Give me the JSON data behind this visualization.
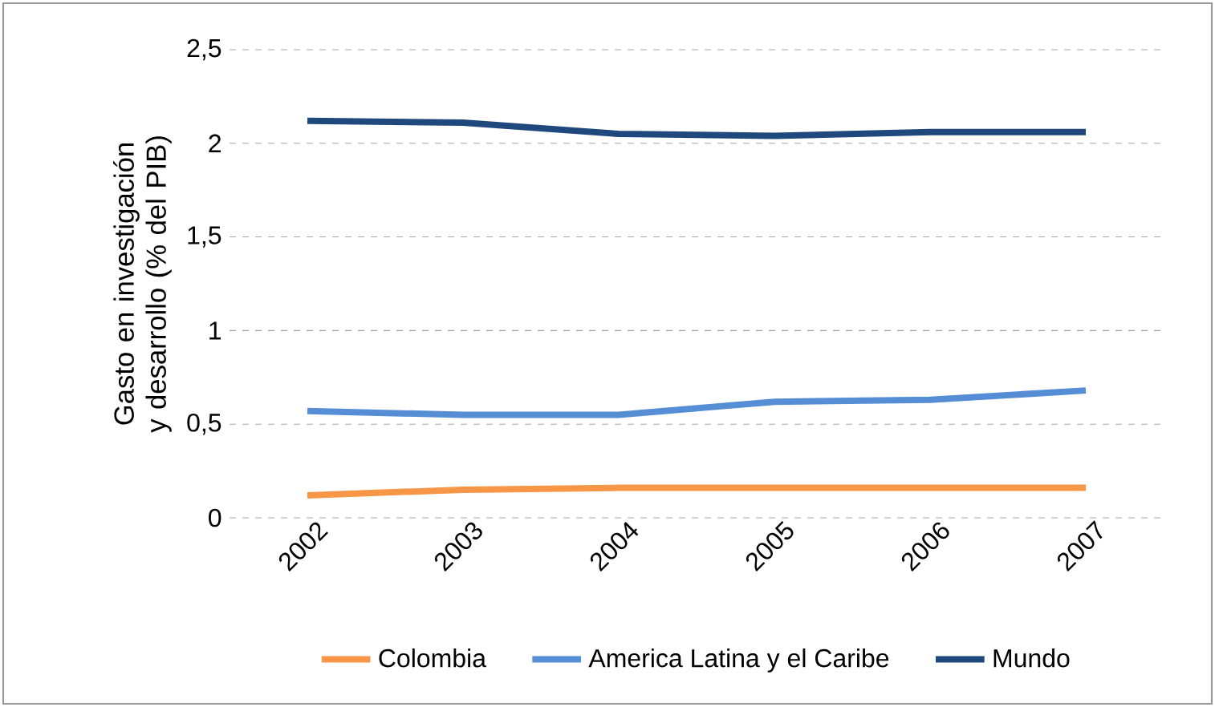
{
  "chart_data": {
    "type": "line",
    "ylabel": "Gasto en investigación y desarrollo (% del PIB)",
    "categories": [
      "2002",
      "2003",
      "2004",
      "2005",
      "2006",
      "2007"
    ],
    "series": [
      {
        "name": "Colombia",
        "color": "#f79646",
        "values": [
          0.12,
          0.15,
          0.16,
          0.16,
          0.16,
          0.16
        ]
      },
      {
        "name": "America Latina y el Caribe",
        "color": "#558ed5",
        "values": [
          0.57,
          0.55,
          0.55,
          0.62,
          0.63,
          0.68
        ]
      },
      {
        "name": "Mundo",
        "color": "#1f497d",
        "values": [
          2.12,
          2.11,
          2.05,
          2.04,
          2.06,
          2.06
        ]
      }
    ],
    "ylim": [
      0,
      2.5
    ],
    "yticks": [
      0,
      {
        "value": 0.5,
        "label": "0,5"
      },
      1,
      {
        "value": 1.5,
        "label": "1,5"
      },
      2,
      {
        "value": 2.5,
        "label": "2,5"
      }
    ],
    "grid": "y",
    "legend": "bottom",
    "marker": "none",
    "line_style": "solid"
  }
}
